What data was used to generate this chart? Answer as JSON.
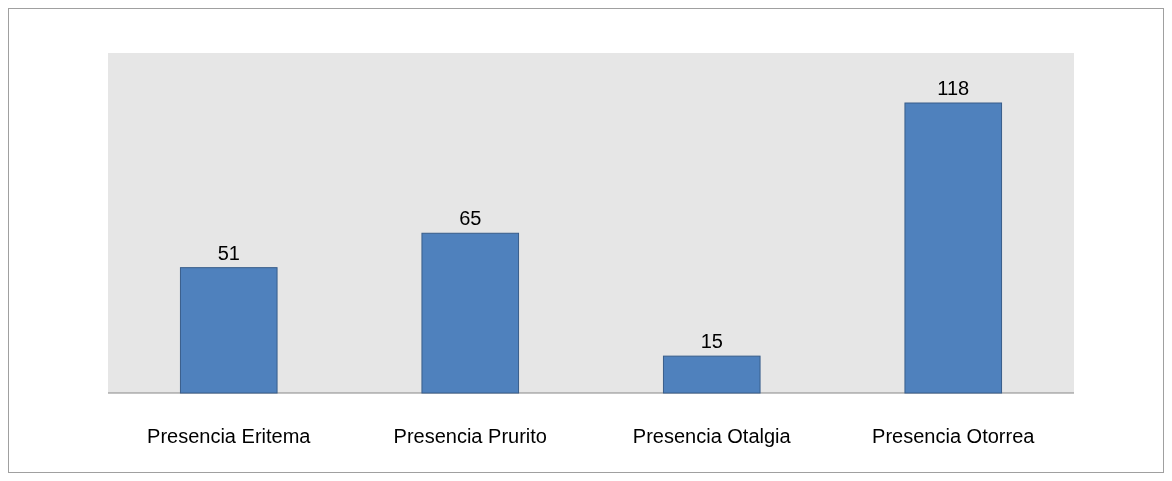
{
  "chart_data": {
    "type": "bar",
    "categories": [
      "Presencia Eritema",
      "Presencia Prurito",
      "Presencia Otalgia",
      "Presencia Otorrea"
    ],
    "values": [
      51,
      65,
      15,
      118
    ],
    "color": "#4f81bd",
    "data_labels": true
  }
}
